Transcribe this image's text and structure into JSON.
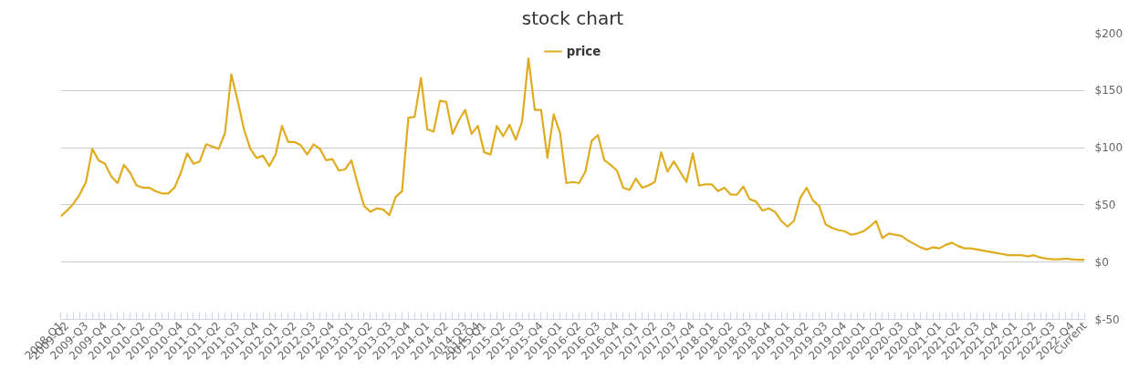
{
  "chart_data": {
    "type": "line",
    "title": "stock chart",
    "categories": [
      "2008-Q1",
      "2009-Q2",
      null,
      null,
      "2009-Q3",
      null,
      null,
      "2009-Q4",
      null,
      null,
      "2010-Q1",
      null,
      null,
      "2010-Q2",
      null,
      null,
      "2010-Q3",
      null,
      null,
      "2010-Q4",
      null,
      null,
      "2011-Q1",
      null,
      null,
      "2011-Q2",
      null,
      null,
      "2011-Q3",
      null,
      null,
      "2011-Q4",
      null,
      null,
      "2012-Q1",
      null,
      null,
      "2012-Q2",
      null,
      null,
      "2012-Q3",
      null,
      null,
      "2012-Q4",
      null,
      null,
      "2013-Q1",
      null,
      null,
      "2013-Q2",
      null,
      null,
      "2013-Q3",
      null,
      null,
      "2013-Q4",
      null,
      null,
      "2014-Q1",
      null,
      null,
      "2014-Q2",
      null,
      null,
      "2014-Q3",
      null,
      "2014-Q4",
      "2015-Q1",
      null,
      null,
      "2015-Q2",
      null,
      null,
      "2015-Q3",
      null,
      null,
      "2015-Q4",
      null,
      null,
      "2016-Q1",
      null,
      null,
      "2016-Q2",
      null,
      null,
      "2016-Q3",
      null,
      null,
      "2016-Q4",
      null,
      null,
      "2017-Q1",
      null,
      null,
      "2017-Q2",
      null,
      null,
      "2017-Q3",
      null,
      null,
      "2017-Q4",
      null,
      null,
      "2018-Q1",
      null,
      null,
      "2018-Q2",
      null,
      null,
      "2018-Q3",
      null,
      null,
      "2018-Q4",
      null,
      null,
      "2019-Q1",
      null,
      null,
      "2019-Q2",
      null,
      null,
      "2019-Q3",
      null,
      null,
      "2019-Q4",
      null,
      null,
      "2020-Q1",
      null,
      null,
      "2020-Q2",
      null,
      null,
      "2020-Q3",
      null,
      null,
      "2020-Q4",
      null,
      null,
      "2021-Q1",
      null,
      null,
      "2021-Q2",
      null,
      null,
      "2021-Q3",
      null,
      null,
      "2021-Q4",
      null,
      null,
      "2022-Q1",
      null,
      null,
      "2022-Q2",
      null,
      null,
      "2022-Q3",
      null,
      null,
      "2022-Q4",
      null,
      "Current"
    ],
    "series": [
      {
        "name": "price",
        "color": "#e0ac1f",
        "values": [
          40,
          45,
          51,
          59,
          70,
          99,
          89,
          86,
          75,
          69,
          85,
          78,
          67,
          65,
          65,
          62,
          60,
          60,
          65,
          78,
          95,
          86,
          88,
          103,
          101,
          99,
          113,
          164,
          141,
          116,
          99,
          91,
          93,
          84,
          94,
          119,
          105,
          105,
          102,
          94,
          103,
          99,
          89,
          90,
          80,
          81,
          89,
          68,
          49,
          44,
          47,
          46,
          41,
          57,
          62,
          126,
          127,
          161,
          116,
          114,
          141,
          140,
          112,
          124,
          133,
          112,
          119,
          96,
          94,
          119,
          110,
          120,
          107,
          123,
          178,
          133,
          133,
          91,
          129,
          113,
          69,
          70,
          69,
          79,
          106,
          111,
          89,
          85,
          80,
          65,
          63,
          73,
          65,
          67,
          70,
          96,
          79,
          88,
          79,
          70,
          95,
          67,
          68,
          68,
          62,
          65,
          59,
          59,
          66,
          55,
          53,
          45,
          47,
          44,
          36,
          31,
          36,
          56,
          65,
          54,
          49,
          33,
          30,
          28,
          27,
          24,
          25,
          27,
          31,
          36,
          21,
          25,
          24,
          23,
          19,
          16,
          13,
          11,
          13,
          12,
          15,
          17,
          14,
          12,
          12,
          11,
          10,
          9,
          8,
          7,
          6,
          6,
          6,
          5,
          6,
          4,
          3,
          2.5,
          2.5,
          3,
          2.5,
          2,
          2
        ]
      }
    ],
    "ylim": [
      -50,
      200
    ],
    "yticks": [
      {
        "value": -50,
        "label": "$-50"
      },
      {
        "value": 0,
        "label": "$0"
      },
      {
        "value": 50,
        "label": "$50"
      },
      {
        "value": 100,
        "label": "$100"
      },
      {
        "value": 150,
        "label": "$150"
      },
      {
        "value": 200,
        "label": "$200"
      }
    ],
    "grid": "y",
    "legend": "top"
  }
}
